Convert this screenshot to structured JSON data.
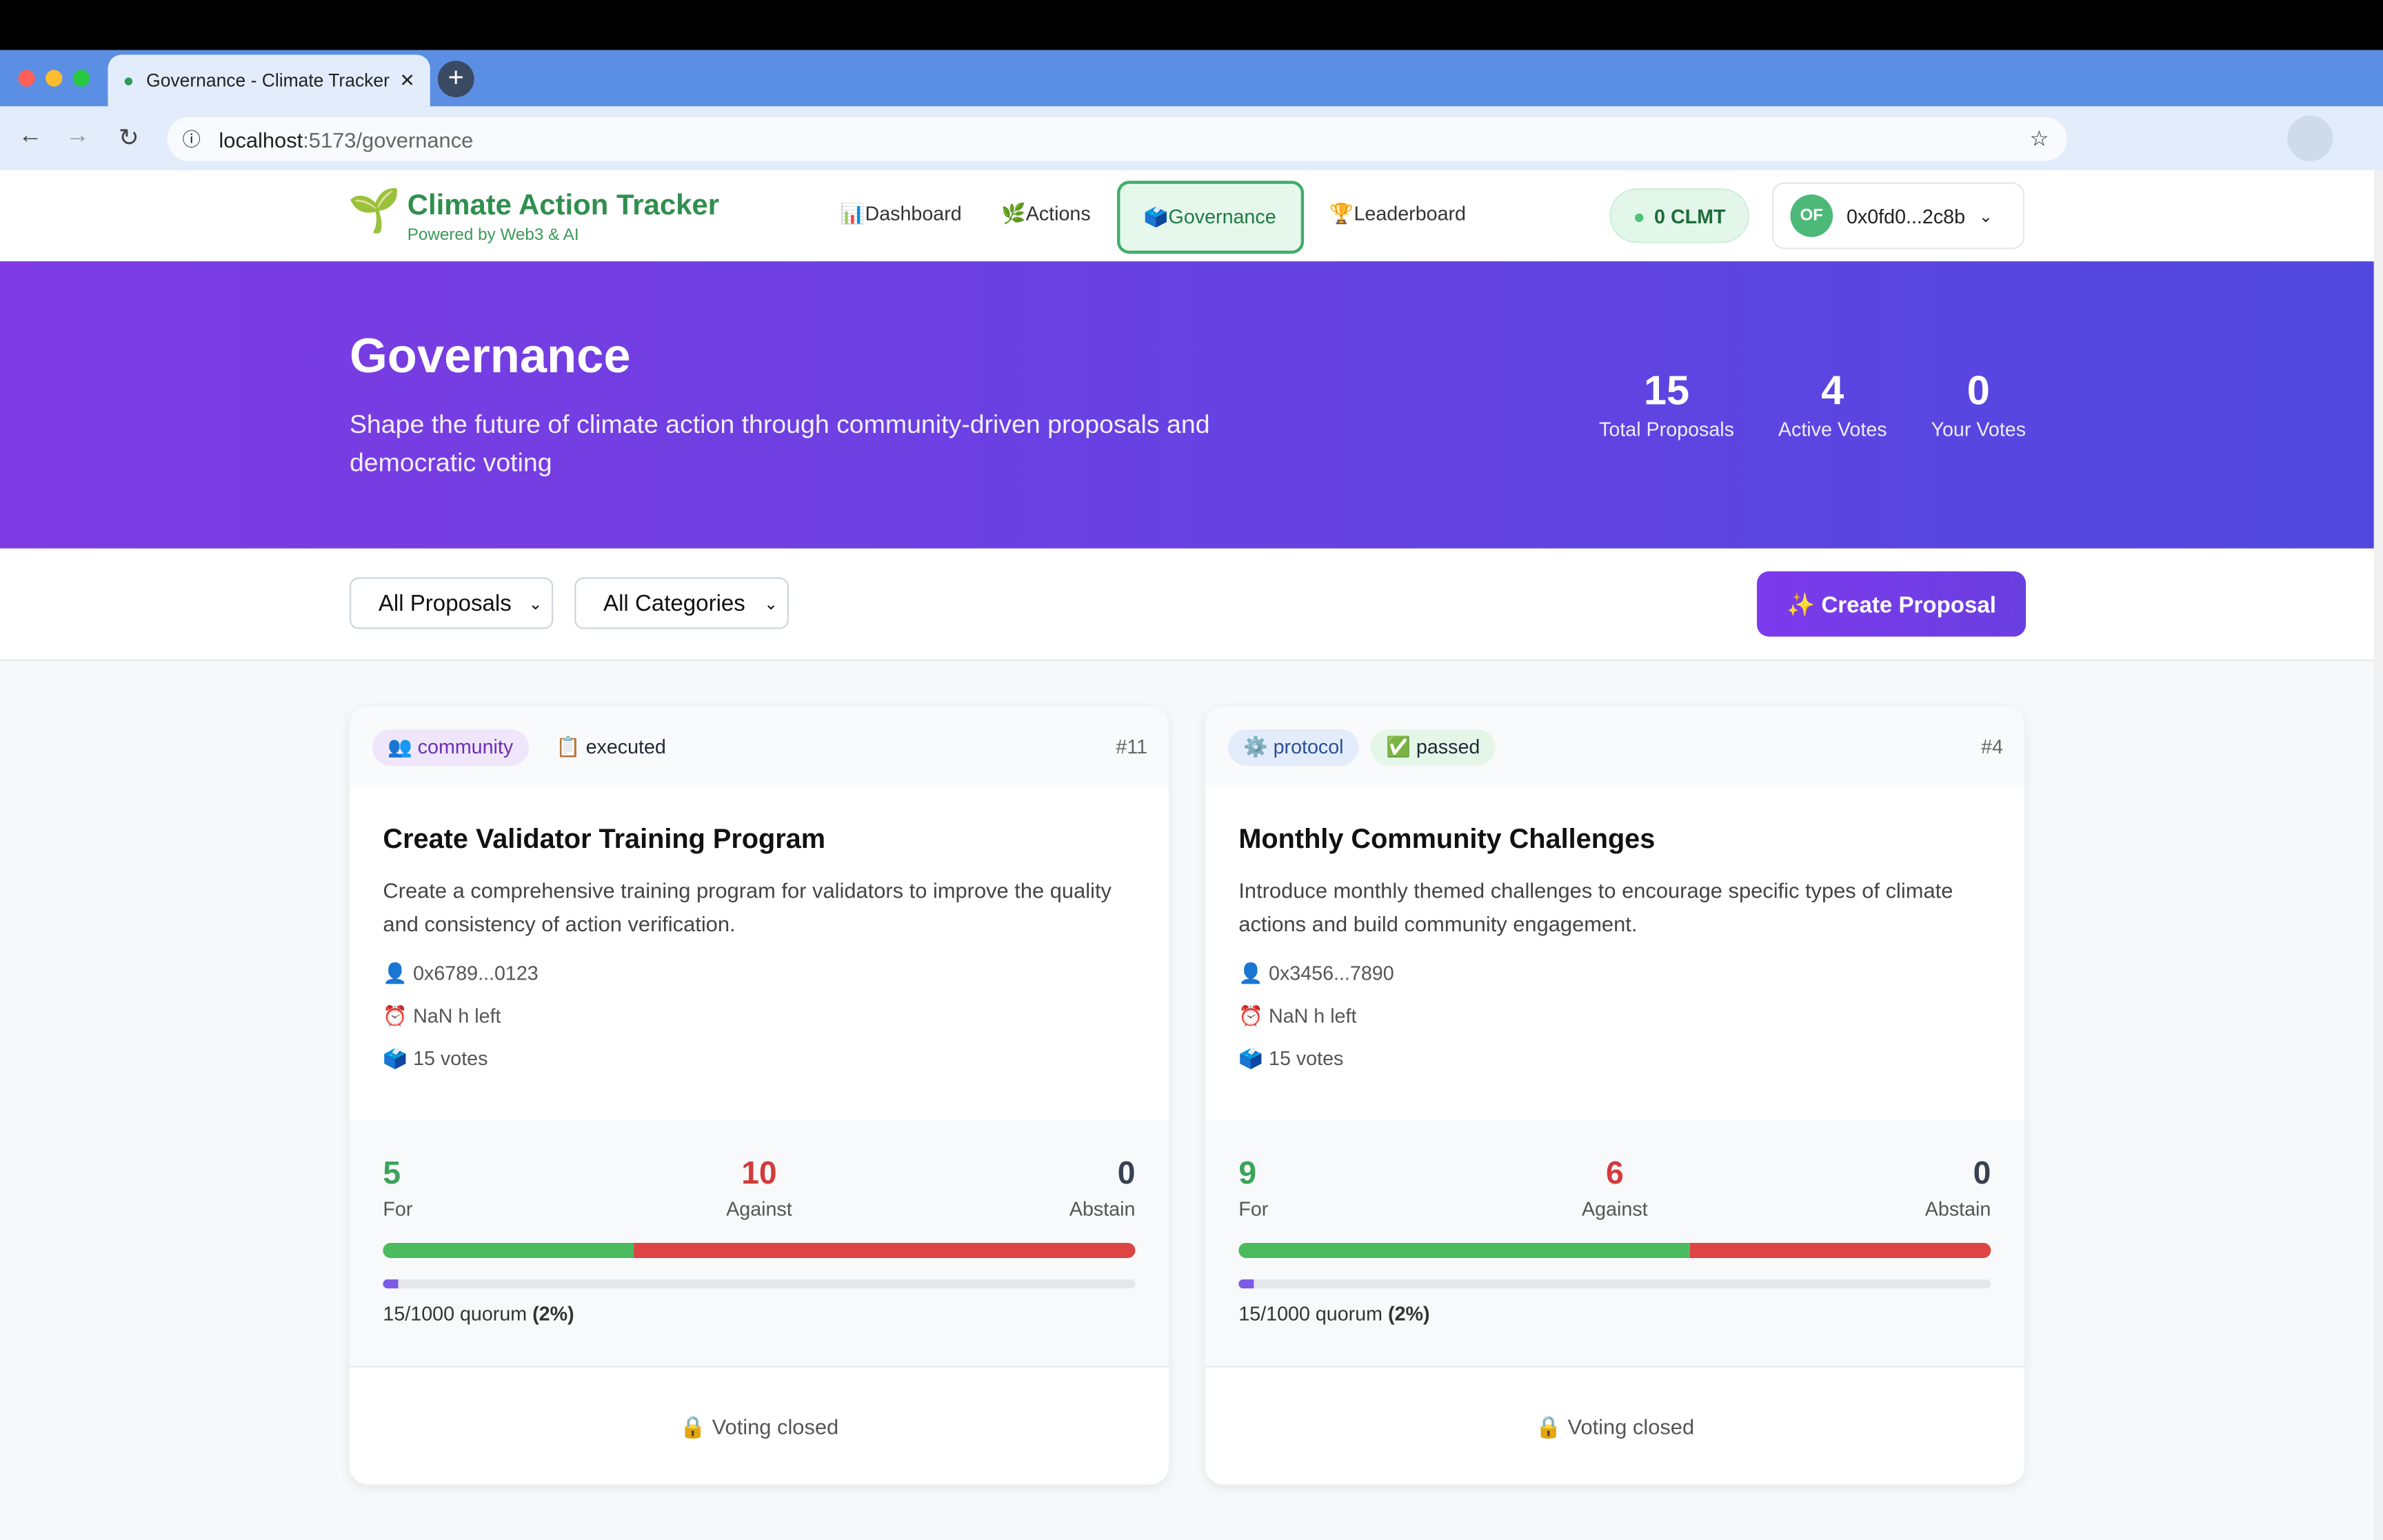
{
  "browser": {
    "tab_title": "Governance - Climate Tracker",
    "url_host": "localhost",
    "url_path": ":5173/governance"
  },
  "nav": {
    "brand": "Climate Action Tracker",
    "tagline": "Powered by Web3 & AI",
    "links": [
      "📊Dashboard",
      "🌿Actions",
      "🗳️Governance",
      "🏆Leaderboard"
    ],
    "active": 2,
    "balance": "0 CLMT",
    "avatar": "OF",
    "address": "0x0fd0...2c8b"
  },
  "hero": {
    "title": "Governance",
    "subtitle": "Shape the future of climate action through community-driven proposals and democratic voting",
    "stats": [
      {
        "value": "15",
        "label": "Total Proposals"
      },
      {
        "value": "4",
        "label": "Active Votes"
      },
      {
        "value": "0",
        "label": "Your Votes"
      }
    ]
  },
  "filters": {
    "options": [
      "All Proposals",
      "All Categories"
    ],
    "create_button": "✨ Create Proposal"
  },
  "proposals": [
    {
      "category": "👥 community",
      "status": "📋 executed",
      "id": "#11",
      "title": "Create Validator Training Program",
      "description": "Create a comprehensive training program for validators to improve the quality and consistency of action verification.",
      "author": "0x6789...0123",
      "time_left": "NaN h left",
      "votes": "15 votes",
      "tally": [
        {
          "count": 5,
          "label": "For"
        },
        {
          "count": 10,
          "label": "Against"
        },
        {
          "count": 0,
          "label": "Abstain"
        }
      ],
      "quorum": {
        "text": "15/1000 quorum",
        "percent": 2,
        "percent_label": "(2%)"
      },
      "footer": "Voting closed"
    },
    {
      "category": "⚙️ protocol",
      "status": "✅ passed",
      "id": "#4",
      "title": "Monthly Community Challenges",
      "description": "Introduce monthly themed challenges to encourage specific types of climate actions and build community engagement.",
      "author": "0x3456...7890",
      "time_left": "NaN h left",
      "votes": "15 votes",
      "tally": [
        {
          "count": 9,
          "label": "For"
        },
        {
          "count": 6,
          "label": "Against"
        },
        {
          "count": 0,
          "label": "Abstain"
        }
      ],
      "quorum": {
        "text": "15/1000 quorum",
        "percent": 2,
        "percent_label": "(2%)"
      },
      "footer": "Voting closed"
    }
  ]
}
